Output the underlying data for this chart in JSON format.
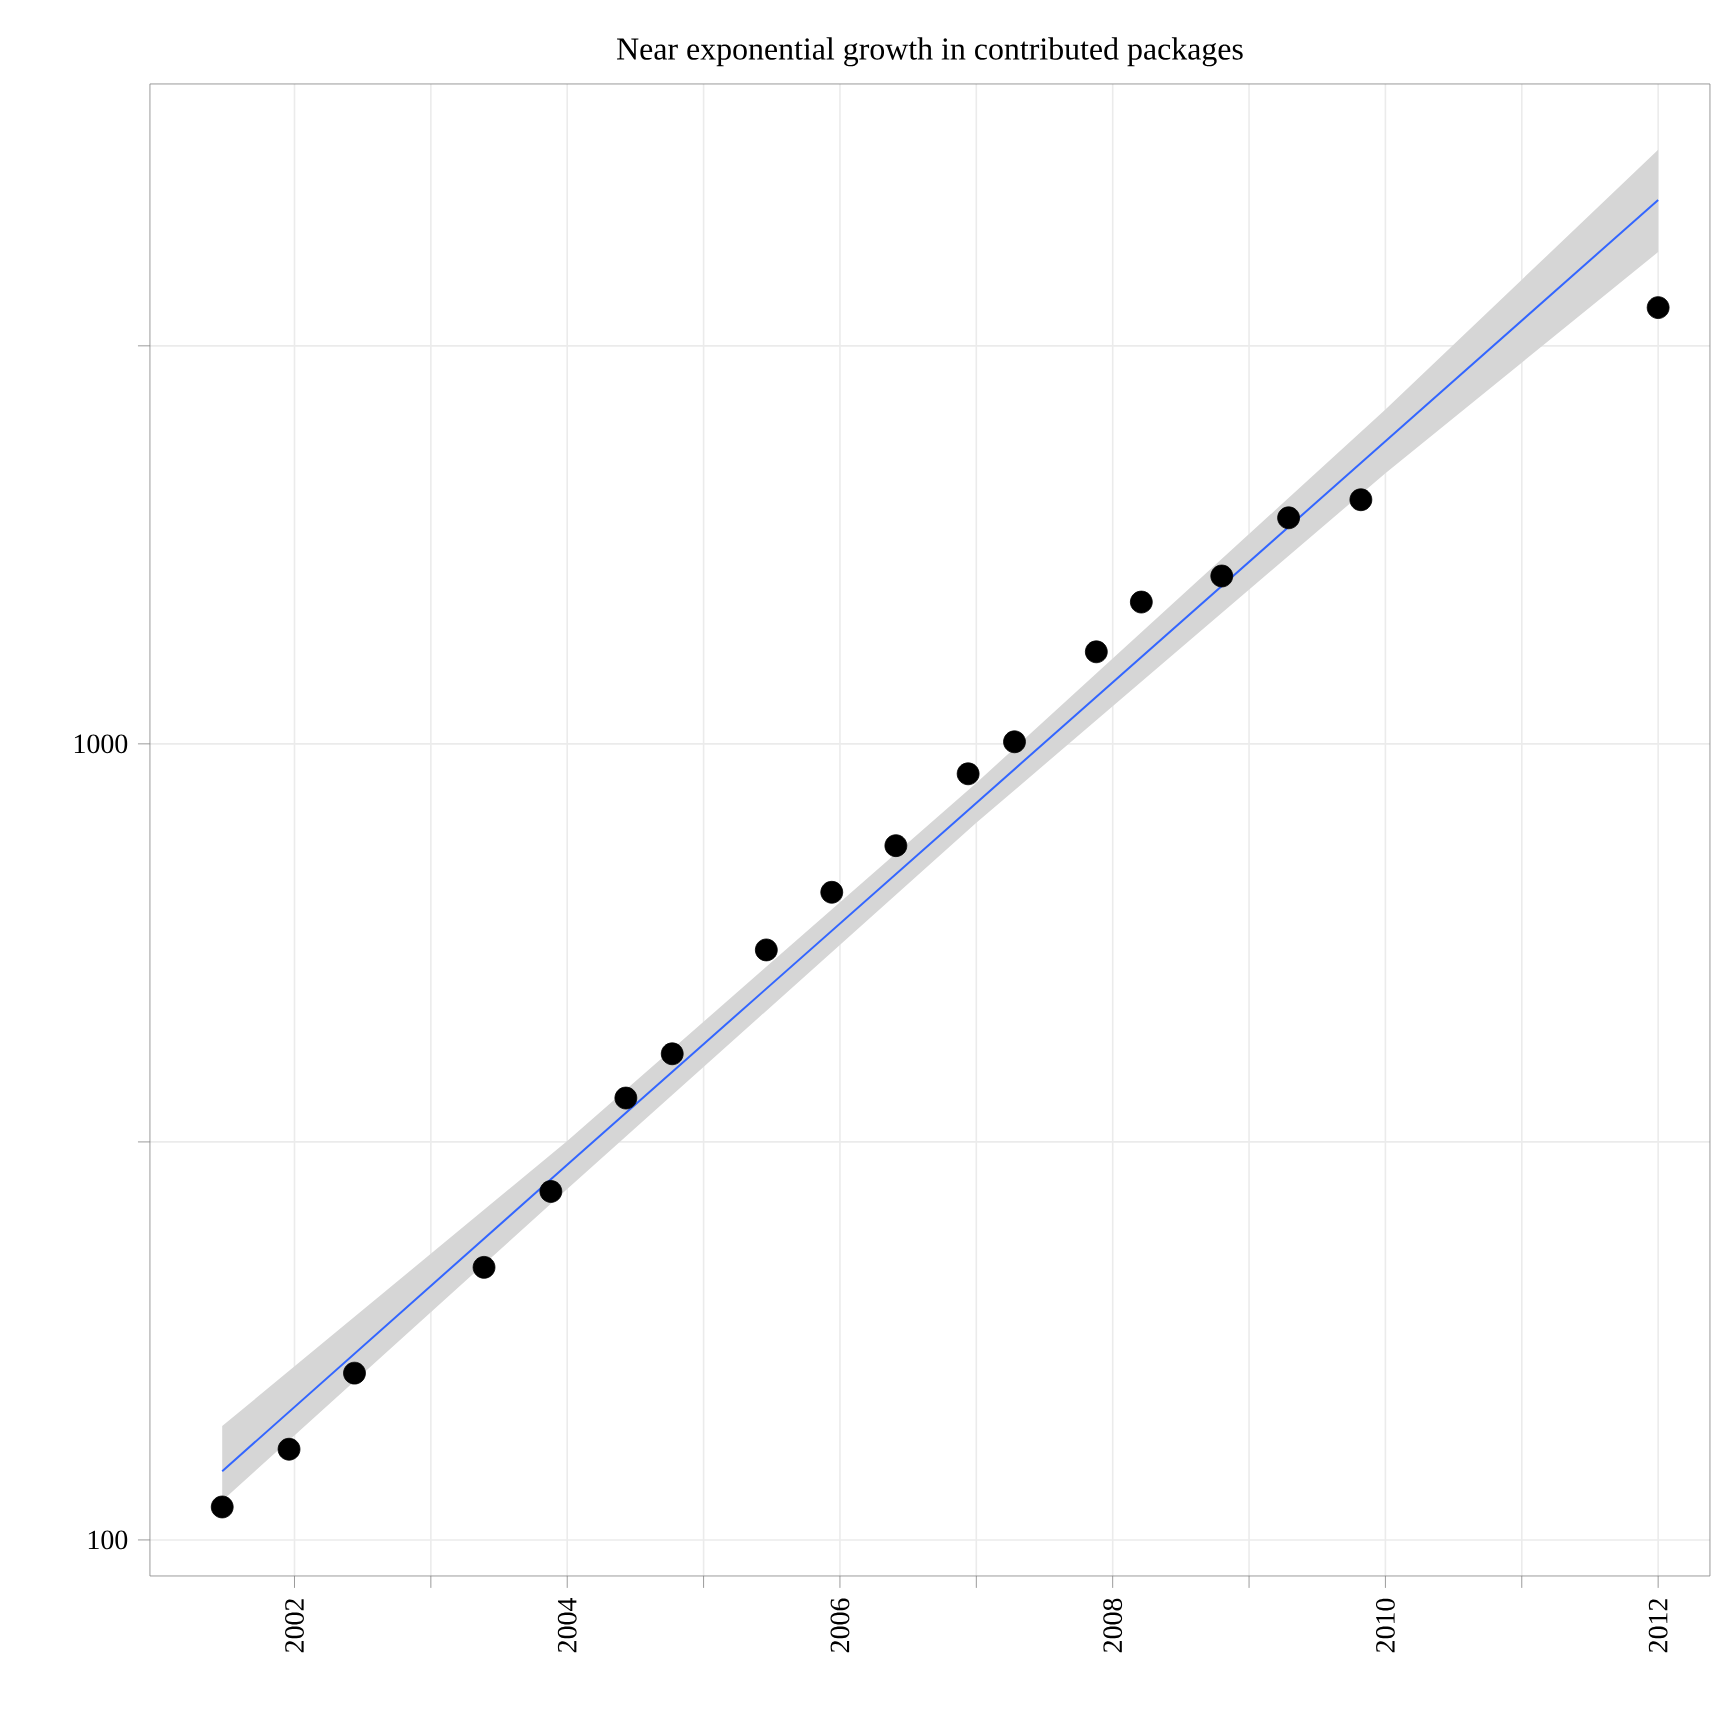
{
  "chart_data": {
    "type": "scatter",
    "title": "Near exponential growth in contributed packages",
    "log": "y",
    "grid": true,
    "xlim": [
      2000.94,
      2012.38
    ],
    "ylim": [
      90.1,
      6745
    ],
    "xticks": [
      2002,
      {
        "value": 2003,
        "label": null
      },
      2004,
      {
        "value": 2005,
        "label": null
      },
      2006,
      {
        "value": 2007,
        "label": null
      },
      2008,
      {
        "value": 2009,
        "label": null
      },
      2010,
      {
        "value": 2011,
        "label": null
      },
      2012
    ],
    "yticks": [
      100,
      {
        "value": 316.2,
        "label": null
      },
      1000,
      {
        "value": 3162,
        "label": null
      }
    ],
    "series": [
      {
        "color": "#000000",
        "marker": "circle",
        "x": [
          2001.47,
          2001.96,
          2002.44,
          2003.39,
          2003.88,
          2004.43,
          2004.77,
          2005.46,
          2005.94,
          2006.41,
          2006.94,
          2007.28,
          2007.88,
          2008.21,
          2008.8,
          2009.29,
          2009.82,
          2012.0
        ],
        "values": [
          110,
          130,
          162,
          220,
          274,
          359,
          408,
          551,
          651,
          745,
          917,
          1006,
          1305,
          1507,
          1625,
          1923,
          2026,
          3532
        ]
      },
      {
        "type": "line",
        "color": "#3366ff",
        "line_style": "solid",
        "x": [
          2001.47,
          2004,
          2007,
          2010,
          2012.0
        ],
        "values": [
          122,
          296,
          843,
          2399,
          4822
        ],
        "lower": [
          112,
          276,
          796,
          2188,
          4148
        ],
        "upper": [
          139,
          317,
          893,
          2630,
          5574
        ]
      }
    ]
  }
}
